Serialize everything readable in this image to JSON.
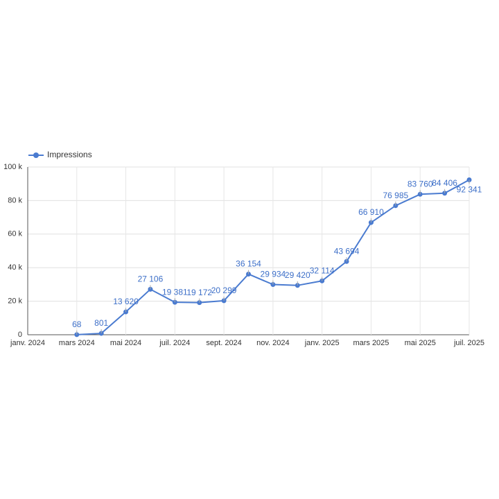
{
  "chart_data": {
    "type": "line",
    "x": [
      "2024-03",
      "2024-04",
      "2024-05",
      "2024-06",
      "2024-07",
      "2024-08",
      "2024-09",
      "2024-10",
      "2024-11",
      "2024-12",
      "2025-01",
      "2025-02",
      "2025-03",
      "2025-04",
      "2025-05",
      "2025-06",
      "2025-07"
    ],
    "series": [
      {
        "name": "Impressions",
        "color": "#4a7bd0",
        "values": [
          68,
          801,
          13620,
          27106,
          19381,
          19172,
          20299,
          36154,
          29934,
          29420,
          32114,
          43694,
          66910,
          76985,
          83760,
          84406,
          92341
        ],
        "value_labels": [
          "68",
          "801",
          "13 620",
          "27 106",
          "19 381",
          "19 172",
          "20 299",
          "36 154",
          "29 934",
          "29 420",
          "32 114",
          "43 694",
          "66 910",
          "76 985",
          "83 760",
          "84 406",
          "92 341"
        ]
      }
    ],
    "xlim": [
      "2024-01",
      "2025-07"
    ],
    "xticks": [
      {
        "value": "2024-01",
        "label": "janv. 2024"
      },
      {
        "value": "2024-03",
        "label": "mars 2024"
      },
      {
        "value": "2024-05",
        "label": "mai 2024"
      },
      {
        "value": "2024-07",
        "label": "juil. 2024"
      },
      {
        "value": "2024-09",
        "label": "sept. 2024"
      },
      {
        "value": "2024-11",
        "label": "nov. 2024"
      },
      {
        "value": "2025-01",
        "label": "janv. 2025"
      },
      {
        "value": "2025-03",
        "label": "mars 2025"
      },
      {
        "value": "2025-05",
        "label": "mai 2025"
      },
      {
        "value": "2025-07",
        "label": "juil. 2025"
      }
    ],
    "ylim": [
      0,
      100000
    ],
    "yticks": [
      0,
      {
        "value": 20000,
        "label": "20 k"
      },
      {
        "value": 40000,
        "label": "40 k"
      },
      {
        "value": 60000,
        "label": "60 k"
      },
      {
        "value": 80000,
        "label": "80 k"
      },
      {
        "value": 100000,
        "label": "100 k"
      }
    ],
    "grid": true,
    "legend": "top-left"
  }
}
